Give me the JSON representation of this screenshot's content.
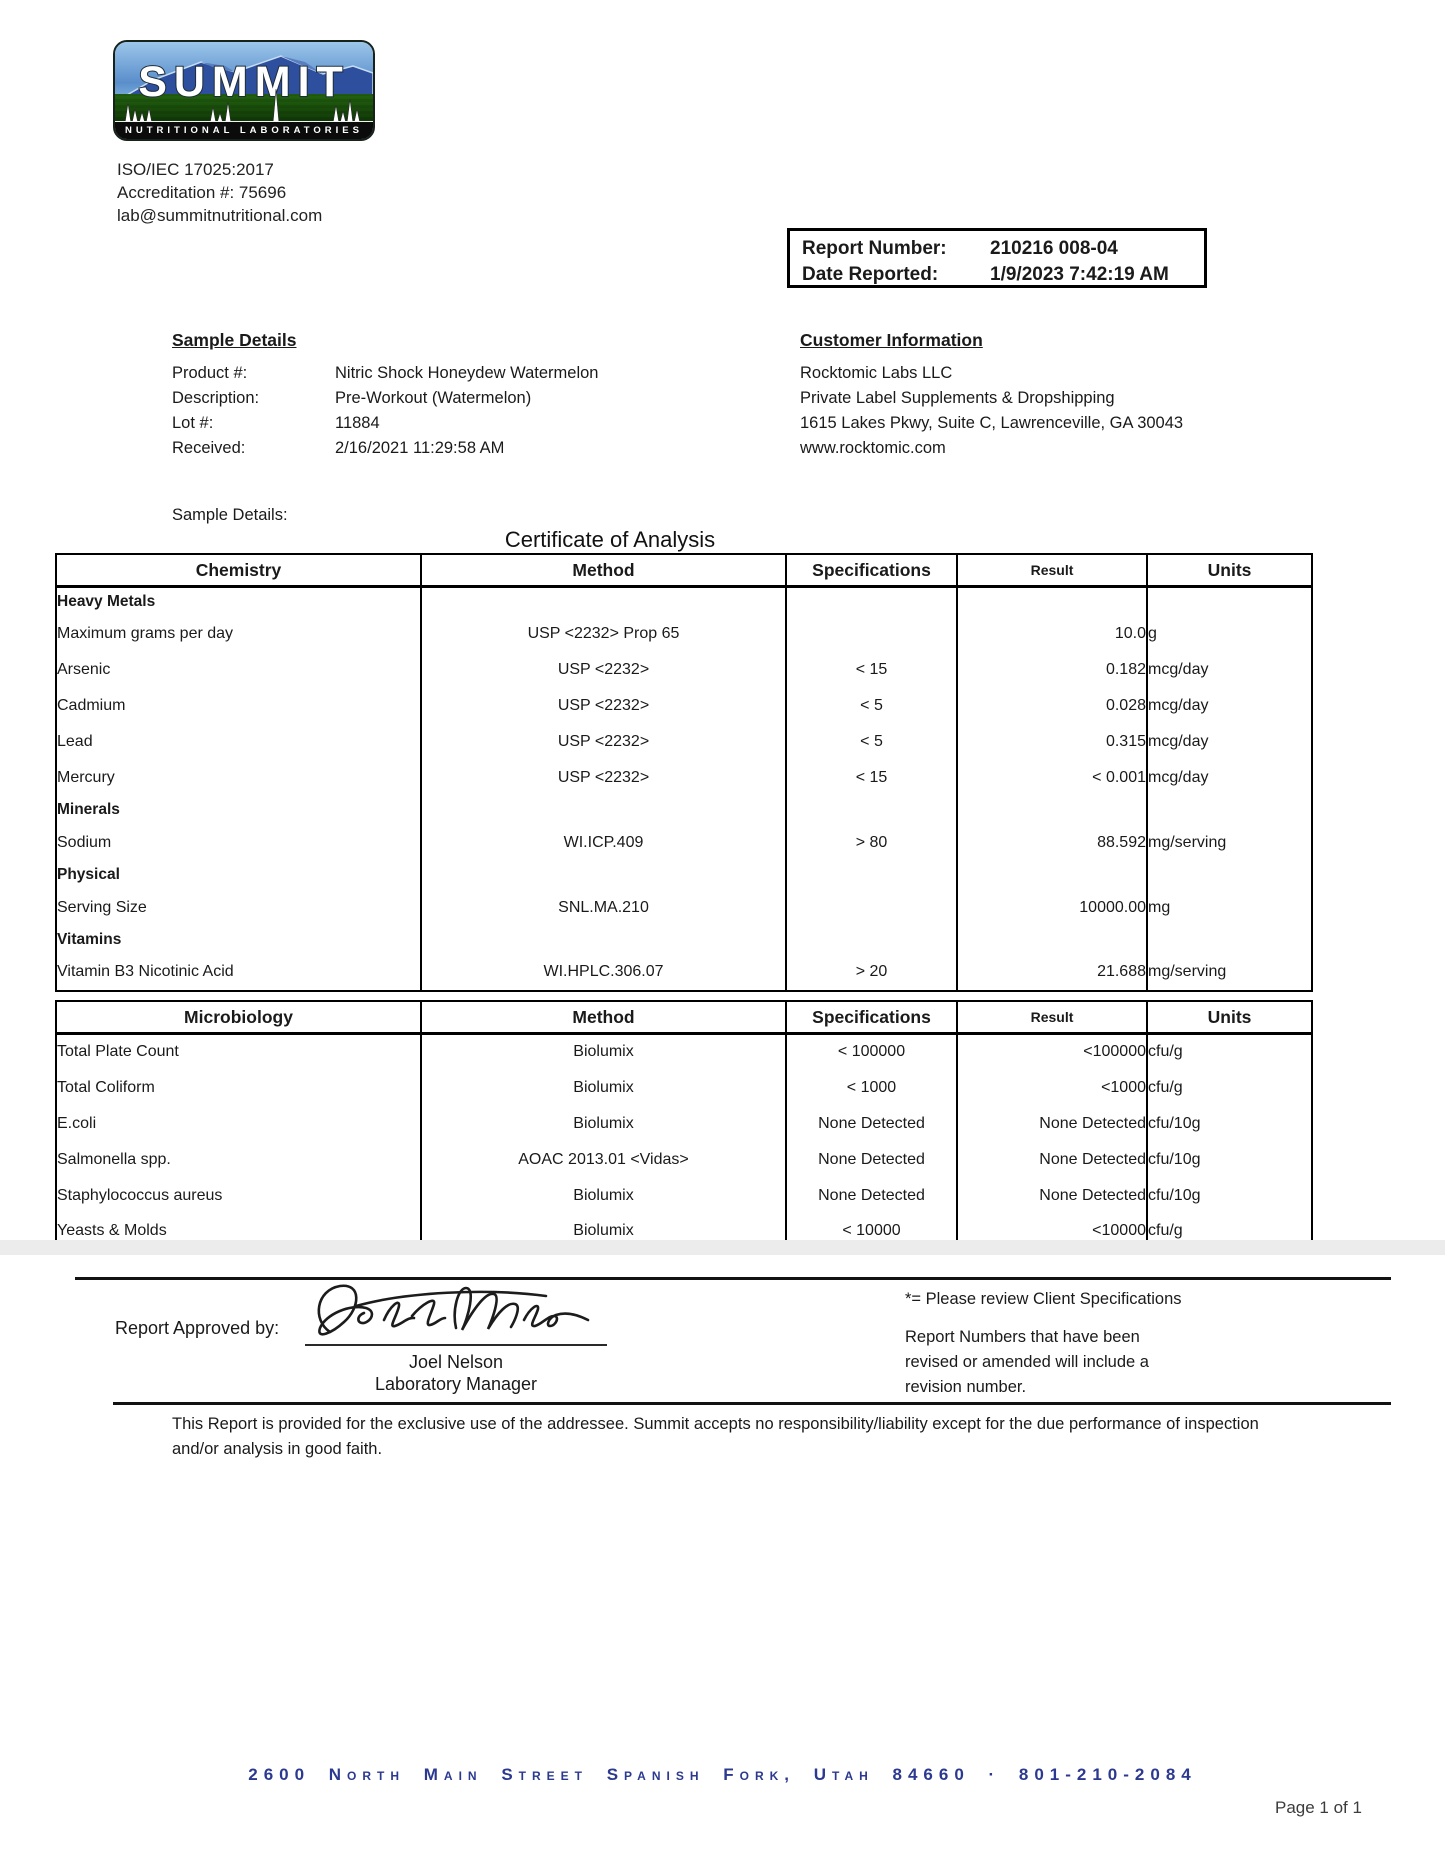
{
  "colors": {
    "footer_blue": "#2b3990",
    "band_gray": "#ececec"
  },
  "lab": {
    "logo_title": "SUMMIT",
    "logo_subtitle": "NUTRITIONAL LABORATORIES",
    "iso": "ISO/IEC 17025:2017",
    "accreditation": "Accreditation #: 75696",
    "email": "lab@summitnutritional.com"
  },
  "report_box": {
    "report_number_label": "Report Number:",
    "report_number": "210216 008-04",
    "date_reported_label": "Date Reported:",
    "date_reported": "1/9/2023 7:42:19 AM"
  },
  "sample_details": {
    "heading": "Sample Details",
    "rows": [
      {
        "label": "Product #:",
        "value": "Nitric Shock Honeydew Watermelon"
      },
      {
        "label": "Description:",
        "value": "Pre-Workout (Watermelon)"
      },
      {
        "label": "Lot #:",
        "value": "11884"
      },
      {
        "label": "Received:",
        "value": "2/16/2021 11:29:58 AM"
      }
    ],
    "extra_label": "Sample Details:"
  },
  "customer": {
    "heading": "Customer Information",
    "lines": [
      "Rocktomic Labs LLC",
      "Private Label Supplements & Dropshipping",
      "1615 Lakes Pkwy, Suite C, Lawrenceville, GA 30043",
      "www.rocktomic.com"
    ]
  },
  "title": "Certificate of Analysis",
  "chemistry_table": {
    "headers": [
      "Chemistry",
      "Method",
      "Specifications",
      "Result",
      "Units"
    ],
    "rows": [
      {
        "type": "section",
        "name": "Heavy Metals",
        "method": "",
        "spec": "",
        "result": "",
        "units": ""
      },
      {
        "type": "data",
        "name": "Maximum grams per day",
        "method": "USP <2232> Prop 65",
        "spec": "",
        "result": "10.0",
        "units": "g"
      },
      {
        "type": "data",
        "name": "Arsenic",
        "method": "USP <2232>",
        "spec": "< 15",
        "result": "0.182",
        "units": "mcg/day"
      },
      {
        "type": "data",
        "name": "Cadmium",
        "method": "USP <2232>",
        "spec": "< 5",
        "result": "0.028",
        "units": "mcg/day"
      },
      {
        "type": "data",
        "name": "Lead",
        "method": "USP <2232>",
        "spec": "< 5",
        "result": "0.315",
        "units": "mcg/day"
      },
      {
        "type": "data",
        "name": "Mercury",
        "method": "USP <2232>",
        "spec": "< 15",
        "result": "< 0.001",
        "units": "mcg/day"
      },
      {
        "type": "section",
        "name": "Minerals",
        "method": "",
        "spec": "",
        "result": "",
        "units": ""
      },
      {
        "type": "data",
        "name": "Sodium",
        "method": "WI.ICP.409",
        "spec": "> 80",
        "result": "88.592",
        "units": "mg/serving"
      },
      {
        "type": "section",
        "name": "Physical",
        "method": "",
        "spec": "",
        "result": "",
        "units": ""
      },
      {
        "type": "data",
        "name": "Serving Size",
        "method": "SNL.MA.210",
        "spec": "",
        "result": "10000.00",
        "units": "mg"
      },
      {
        "type": "section",
        "name": "Vitamins",
        "method": "",
        "spec": "",
        "result": "",
        "units": ""
      },
      {
        "type": "data",
        "name": "Vitamin B3 Nicotinic Acid",
        "method": "WI.HPLC.306.07",
        "spec": "> 20",
        "result": "21.688",
        "units": "mg/serving"
      }
    ]
  },
  "micro_table": {
    "headers": [
      "Microbiology",
      "Method",
      "Specifications",
      "Result",
      "Units"
    ],
    "rows": [
      {
        "type": "data",
        "name": "Total Plate Count",
        "method": "Biolumix",
        "spec": "< 100000",
        "result": "<100000",
        "units": "cfu/g"
      },
      {
        "type": "data",
        "name": "Total Coliform",
        "method": "Biolumix",
        "spec": "< 1000",
        "result": "<1000",
        "units": "cfu/g"
      },
      {
        "type": "data",
        "name": "E.coli",
        "method": "Biolumix",
        "spec": "None Detected",
        "result": "None Detected",
        "units": "cfu/10g"
      },
      {
        "type": "data",
        "name": "Salmonella spp.",
        "method": "AOAC 2013.01 <Vidas>",
        "spec": "None Detected",
        "result": "None Detected",
        "units": "cfu/10g"
      },
      {
        "type": "data",
        "name": "Staphylococcus aureus",
        "method": "Biolumix",
        "spec": "None Detected",
        "result": "None Detected",
        "units": "cfu/10g"
      },
      {
        "type": "data",
        "name": "Yeasts & Molds",
        "method": "Biolumix",
        "spec": "< 10000",
        "result": "<10000",
        "units": "cfu/g"
      }
    ]
  },
  "approval": {
    "approved_by_label": "Report Approved by:",
    "signature_script": "Joel L Nelson",
    "signer_name": "Joel Nelson",
    "signer_title": "Laboratory Manager"
  },
  "footnotes": {
    "client_spec": "*= Please review Client Specifications",
    "revision_line1": "Report Numbers that have been",
    "revision_line2": "revised or amended will include a",
    "revision_line3": "revision number."
  },
  "disclaimer": "This Report is provided for the exclusive use of the addressee. Summit accepts no responsibility/liability except for the due performance of inspection and/or analysis in good faith.",
  "footer": {
    "address": "2600 North Main Street Spanish Fork, Utah 84660 · 801-210-2084",
    "page": "Page 1 of 1"
  }
}
